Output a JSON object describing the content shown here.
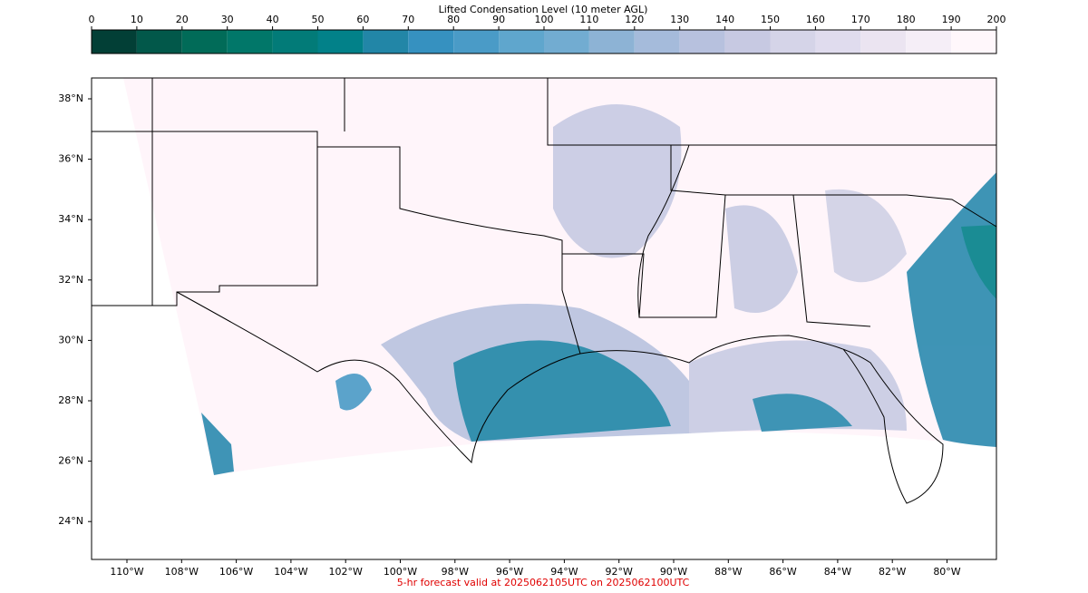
{
  "colorbar": {
    "title": "Lifted Condensation Level (10 meter AGL)",
    "ticks": [
      0,
      10,
      20,
      30,
      40,
      50,
      60,
      70,
      80,
      90,
      100,
      110,
      120,
      130,
      140,
      150,
      160,
      170,
      180,
      190,
      200
    ],
    "colors": [
      "#023f36",
      "#02584a",
      "#016b58",
      "#017769",
      "#027b78",
      "#028189",
      "#2286a7",
      "#3691c0",
      "#4a9bc7",
      "#5fa6cd",
      "#72acd1",
      "#8db3d5",
      "#a5bbdb",
      "#b7c1de",
      "#c7c9e2",
      "#d5d4e8",
      "#e0dcee",
      "#ebe4f1",
      "#f5eef7",
      "#fff7fb"
    ]
  },
  "map": {
    "lat_labels": [
      "38°N",
      "36°N",
      "34°N",
      "32°N",
      "30°N",
      "28°N",
      "26°N",
      "24°N"
    ],
    "lon_labels": [
      "110°W",
      "108°W",
      "106°W",
      "104°W",
      "102°W",
      "100°W",
      "98°W",
      "96°W",
      "94°W",
      "92°W",
      "90°W",
      "88°W",
      "86°W",
      "84°W",
      "82°W",
      "80°W"
    ]
  },
  "footer": "5-hr forecast valid at 2025062105UTC on 2025062100UTC"
}
